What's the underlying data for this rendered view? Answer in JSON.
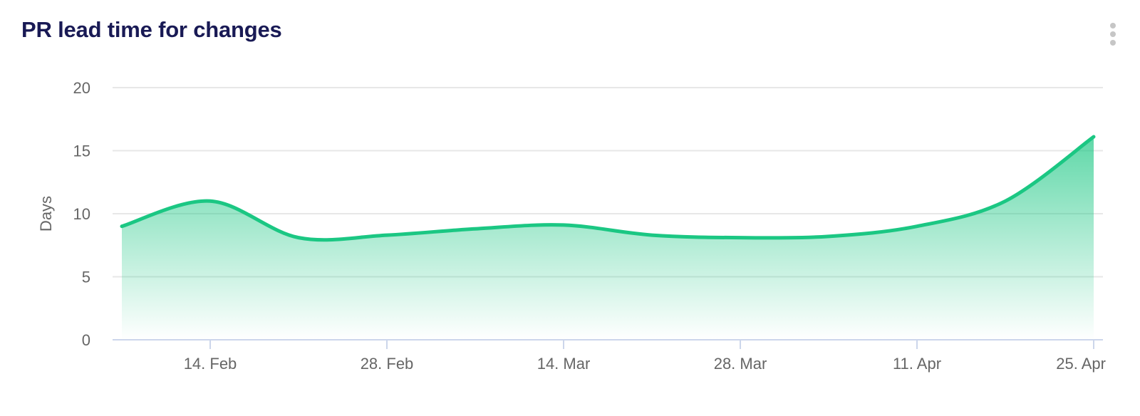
{
  "header": {
    "title": "PR lead time for changes",
    "title_color": "#191a55",
    "menu_icon": "kebab-vertical",
    "menu_icon_color": "#c6c6c6"
  },
  "chart_data": {
    "type": "area",
    "title": "PR lead time for changes",
    "xlabel": "",
    "ylabel": "Days",
    "ylim": [
      0,
      20
    ],
    "yticks": [
      0,
      5,
      10,
      15,
      20
    ],
    "ytick_labels": [
      "0",
      "5",
      "10",
      "15",
      "20"
    ],
    "x": [
      "7. Feb",
      "14. Feb",
      "21. Feb",
      "28. Feb",
      "7. Mar",
      "14. Mar",
      "21. Mar",
      "28. Mar",
      "4. Apr",
      "11. Apr",
      "18. Apr",
      "25. Apr"
    ],
    "x_day_offsets": [
      0,
      7,
      14,
      21,
      28,
      35,
      42,
      49,
      56,
      63,
      70,
      77
    ],
    "values": [
      9.0,
      11.0,
      8.1,
      8.3,
      8.8,
      9.1,
      8.3,
      8.1,
      8.2,
      9.0,
      11.0,
      16.1
    ],
    "xtick_labels": [
      "14. Feb",
      "28. Feb",
      "14. Mar",
      "28. Mar",
      "11. Apr",
      "25. Apr"
    ],
    "xtick_day_offsets": [
      7,
      21,
      35,
      49,
      63,
      77
    ],
    "grid": true,
    "legend": false,
    "colors": {
      "series_line": "#1bc783",
      "series_fill_top": "rgba(27,199,131,0.7)",
      "series_fill_bottom": "rgba(27,199,131,0)",
      "gridline": "#e7e7e7",
      "axis_line": "#ccd6eb",
      "tick_mark": "#ccd6eb",
      "axis_label": "#666666"
    }
  }
}
